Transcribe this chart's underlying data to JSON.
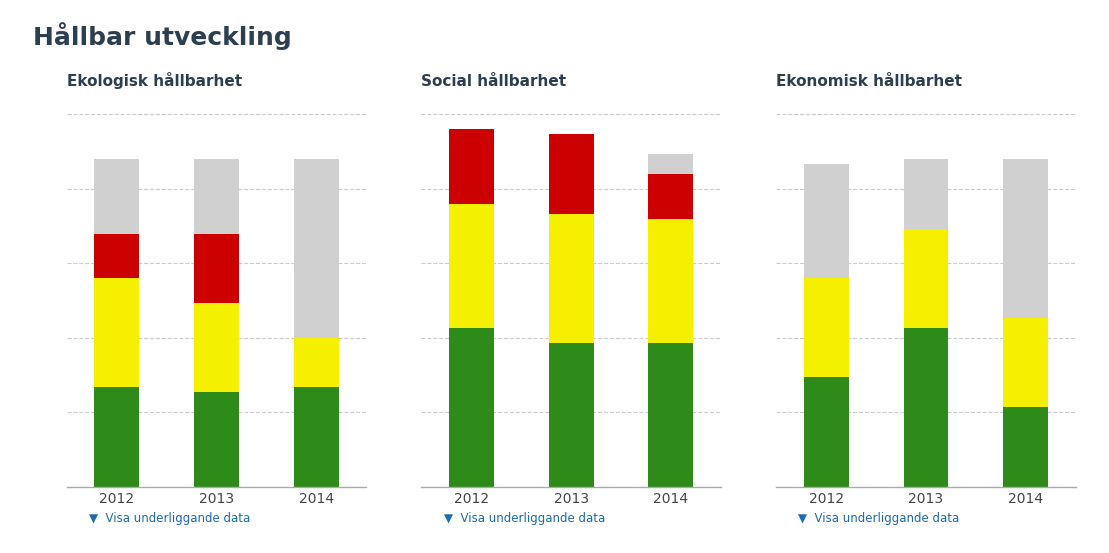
{
  "title": "Hållbar utveckling",
  "title_color": "#2c3e50",
  "background_color": "#ffffff",
  "charts": [
    {
      "subtitle": "Ekologisk hållbarhet",
      "years": [
        "2012",
        "2013",
        "2014"
      ],
      "green": [
        2.0,
        1.9,
        2.0
      ],
      "yellow": [
        2.2,
        1.8,
        1.0
      ],
      "red": [
        0.9,
        1.4,
        0.0
      ],
      "gray": [
        1.5,
        1.5,
        3.6
      ]
    },
    {
      "subtitle": "Social hållbarhet",
      "years": [
        "2012",
        "2013",
        "2014"
      ],
      "green": [
        3.2,
        2.9,
        2.9
      ],
      "yellow": [
        2.5,
        2.6,
        2.5
      ],
      "red": [
        1.5,
        1.6,
        0.9
      ],
      "gray": [
        0.0,
        0.0,
        0.4
      ]
    },
    {
      "subtitle": "Ekonomisk hållbarhet",
      "years": [
        "2012",
        "2013",
        "2014"
      ],
      "green": [
        2.2,
        3.2,
        1.6
      ],
      "yellow": [
        2.0,
        2.0,
        1.8
      ],
      "red": [
        0.0,
        0.0,
        0.0
      ],
      "gray": [
        2.3,
        1.4,
        3.2
      ]
    }
  ],
  "colors": {
    "green": "#2e8b1a",
    "yellow": "#f5f000",
    "red": "#cc0000",
    "gray": "#d0d0d0"
  },
  "link_text": "Visa underliggande data",
  "link_color": "#1a6ab5",
  "ylim": [
    0,
    7.8
  ],
  "bar_width": 0.45,
  "grid_color": "#cccccc"
}
